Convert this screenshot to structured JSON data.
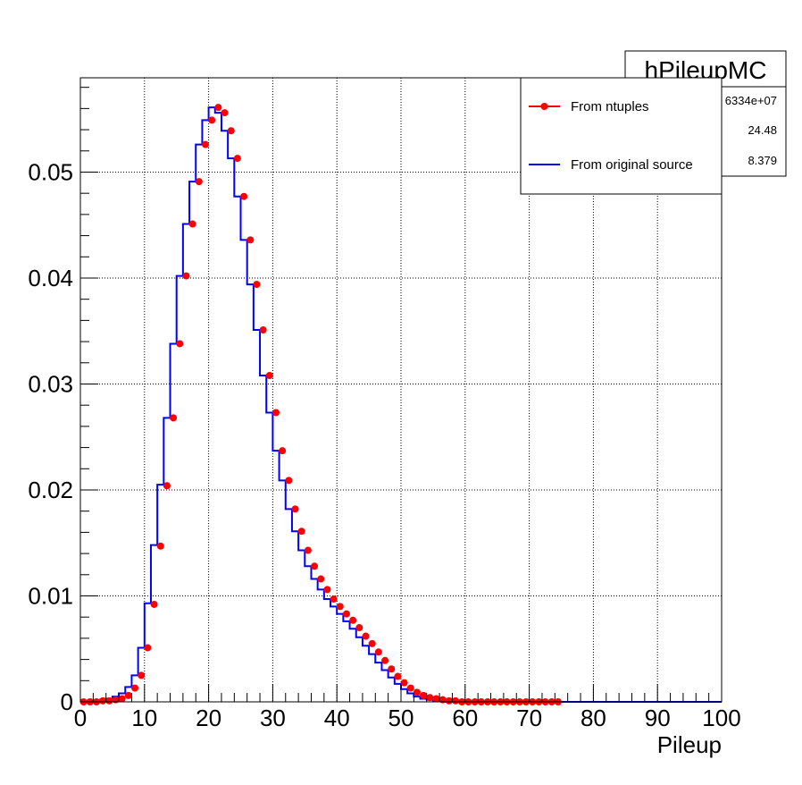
{
  "stats_box": {
    "title": "hPileupMC",
    "rows": [
      {
        "value": "6334e+07"
      },
      {
        "value": "24.48"
      },
      {
        "value": "8.379"
      }
    ]
  },
  "legend": {
    "entries": [
      {
        "label": "From ntuples",
        "style": "marker-line",
        "color": "#ff0000"
      },
      {
        "label": "From original source",
        "style": "line",
        "color": "#0000ff"
      }
    ]
  },
  "chart_data": {
    "type": "line",
    "title": "",
    "xlabel": "Pileup",
    "ylabel": "",
    "xlim": [
      0,
      100
    ],
    "ylim": [
      0,
      0.0589
    ],
    "x_ticks": [
      0,
      10,
      20,
      30,
      40,
      50,
      60,
      70,
      80,
      90,
      100
    ],
    "x_tick_labels": [
      "0",
      "10",
      "20",
      "30",
      "40",
      "50",
      "60",
      "70",
      "80",
      "90",
      "100"
    ],
    "y_ticks": [
      0,
      0.01,
      0.02,
      0.03,
      0.04,
      0.05
    ],
    "y_tick_labels": [
      "0",
      "0.01",
      "0.02",
      "0.03",
      "0.04",
      "0.05"
    ],
    "grid": true,
    "legend_position": "top-right",
    "series": [
      {
        "name": "From original source",
        "kind": "histogram-step",
        "color": "#0000ff",
        "bin_edges_start": 0,
        "bin_width": 1,
        "values": [
          0.0,
          0.0,
          0.0001,
          0.0002,
          0.0003,
          0.0005,
          0.0008,
          0.0014,
          0.0025,
          0.0051,
          0.0093,
          0.0148,
          0.0205,
          0.0268,
          0.0338,
          0.0402,
          0.0451,
          0.0491,
          0.0526,
          0.0549,
          0.0561,
          0.0556,
          0.0539,
          0.0513,
          0.0477,
          0.0436,
          0.0394,
          0.0351,
          0.0308,
          0.0273,
          0.0237,
          0.0209,
          0.0182,
          0.0161,
          0.0143,
          0.0128,
          0.0116,
          0.0106,
          0.0097,
          0.009,
          0.0083,
          0.0076,
          0.0069,
          0.0061,
          0.0053,
          0.0045,
          0.0037,
          0.003,
          0.0023,
          0.0017,
          0.0012,
          0.0008,
          0.0005,
          0.0003,
          0.0002,
          0.0001,
          0.0001,
          0.0,
          0.0,
          0.0,
          0.0,
          0.0,
          0.0,
          0.0,
          0.0,
          0.0,
          0.0,
          0.0,
          0.0,
          0.0,
          0.0,
          0.0,
          0.0,
          0.0,
          0.0,
          0.0,
          0.0,
          0.0,
          0.0,
          0.0,
          0.0,
          0.0,
          0.0,
          0.0,
          0.0,
          0.0,
          0.0,
          0.0,
          0.0,
          0.0,
          0.0,
          0.0,
          0.0,
          0.0,
          0.0,
          0.0,
          0.0,
          0.0,
          0.0,
          0.0
        ]
      },
      {
        "name": "From ntuples",
        "kind": "markers",
        "color": "#ff0000",
        "x": [
          0.5,
          1.5,
          2.5,
          3.5,
          4.5,
          5.5,
          6.5,
          7.5,
          8.5,
          9.5,
          10.5,
          11.5,
          12.5,
          13.5,
          14.5,
          15.5,
          16.5,
          17.5,
          18.5,
          19.5,
          20.5,
          21.5,
          22.5,
          23.5,
          24.5,
          25.5,
          26.5,
          27.5,
          28.5,
          29.5,
          30.5,
          31.5,
          32.5,
          33.5,
          34.5,
          35.5,
          36.5,
          37.5,
          38.5,
          39.5,
          40.5,
          41.5,
          42.5,
          43.5,
          44.5,
          45.5,
          46.5,
          47.5,
          48.5,
          49.5,
          50.5,
          51.5,
          52.5,
          53.5,
          54.5,
          55.5,
          56.5,
          57.5,
          58.5,
          59.5,
          60.5,
          61.5,
          62.5,
          63.5,
          64.5,
          65.5,
          66.5,
          67.5,
          68.5,
          69.5,
          70.5,
          71.5,
          72.5,
          73.5,
          74.5
        ],
        "y": [
          0.0,
          0.0,
          0.0,
          0.0001,
          0.0001,
          0.0002,
          0.0003,
          0.0006,
          0.0013,
          0.0025,
          0.0051,
          0.0092,
          0.0147,
          0.0204,
          0.0268,
          0.0338,
          0.0402,
          0.0451,
          0.0491,
          0.0526,
          0.0549,
          0.0561,
          0.0556,
          0.0539,
          0.0513,
          0.0477,
          0.0436,
          0.0394,
          0.0351,
          0.0308,
          0.0273,
          0.0237,
          0.0209,
          0.0182,
          0.0161,
          0.0143,
          0.0128,
          0.0116,
          0.0106,
          0.0097,
          0.009,
          0.0083,
          0.0077,
          0.007,
          0.0062,
          0.0055,
          0.0047,
          0.0039,
          0.0031,
          0.0024,
          0.0018,
          0.0013,
          0.0009,
          0.0006,
          0.0004,
          0.0003,
          0.0002,
          0.0001,
          0.0001,
          0.0,
          0.0,
          0.0,
          0.0,
          0.0,
          0.0,
          0.0,
          0.0,
          0.0,
          0.0,
          0.0,
          0.0,
          0.0,
          0.0,
          0.0,
          0.0
        ]
      }
    ]
  }
}
